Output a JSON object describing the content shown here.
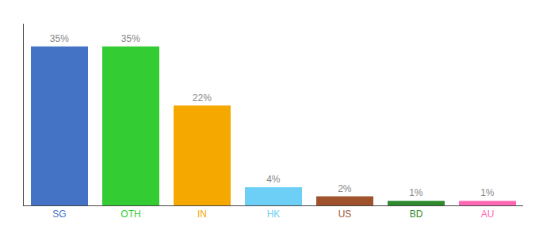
{
  "chart_data": {
    "type": "bar",
    "categories": [
      "SG",
      "OTH",
      "IN",
      "HK",
      "US",
      "BD",
      "AU"
    ],
    "values": [
      35,
      35,
      22,
      4,
      2,
      1,
      1
    ],
    "value_labels": [
      "35%",
      "35%",
      "22%",
      "4%",
      "2%",
      "1%",
      "1%"
    ],
    "colors": [
      "#4472c4",
      "#33cc33",
      "#f5a800",
      "#6dcff6",
      "#a0522d",
      "#2d8a2d",
      "#ff69b4"
    ],
    "ylim": [
      0,
      40
    ],
    "yticks": [],
    "grid": false,
    "data_labels": true,
    "tick_labels": "x"
  }
}
